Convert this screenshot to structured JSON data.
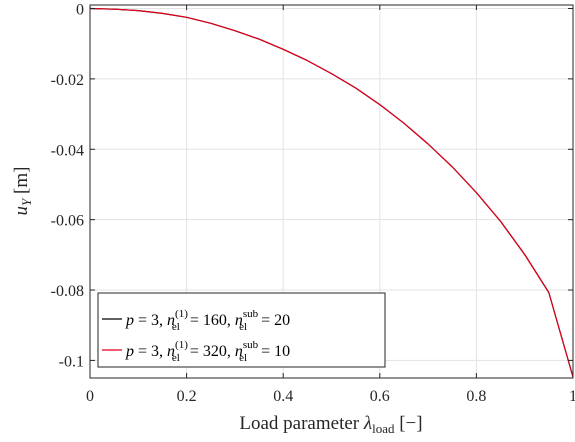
{
  "chart_data": {
    "type": "line",
    "xlabel": {
      "prefix": "Load parameter ",
      "symbol": "λ",
      "subscript": "load",
      "unit": " [−]"
    },
    "ylabel": {
      "symbol": "u",
      "subscript": "Y",
      "unit": " [m]"
    },
    "xlim": [
      0,
      1
    ],
    "ylim": [
      -0.105,
      0.001
    ],
    "grid": true,
    "legend_position": "bottom-left",
    "x_ticks": [
      {
        "value": 0,
        "label": "0"
      },
      {
        "value": 0.2,
        "label": "0.2"
      },
      {
        "value": 0.4,
        "label": "0.4"
      },
      {
        "value": 0.6,
        "label": "0.6"
      },
      {
        "value": 0.8,
        "label": "0.8"
      },
      {
        "value": 1,
        "label": "1"
      }
    ],
    "y_ticks": [
      {
        "value": 0,
        "label": "0"
      },
      {
        "value": -0.02,
        "label": "-0.02"
      },
      {
        "value": -0.04,
        "label": "-0.04"
      },
      {
        "value": -0.06,
        "label": "-0.06"
      },
      {
        "value": -0.08,
        "label": "-0.08"
      },
      {
        "value": -0.1,
        "label": "-0.1"
      }
    ],
    "series": [
      {
        "name": "p = 3, n_el^(1) = 160, n_el^sub = 20",
        "legend": {
          "p": "3",
          "n1": "160",
          "nsub": "20"
        },
        "color": "#000000",
        "x": [
          0,
          0.05,
          0.1,
          0.15,
          0.2,
          0.25,
          0.3,
          0.35,
          0.4,
          0.45,
          0.5,
          0.55,
          0.6,
          0.65,
          0.7,
          0.75,
          0.8,
          0.85,
          0.9,
          0.95,
          1.0
        ],
        "y": [
          0,
          -0.0002,
          -0.0006,
          -0.0014,
          -0.0025,
          -0.0042,
          -0.0063,
          -0.0087,
          -0.0116,
          -0.0148,
          -0.0185,
          -0.0226,
          -0.0273,
          -0.0326,
          -0.0385,
          -0.045,
          -0.0523,
          -0.0605,
          -0.0699,
          -0.0807,
          -0.1047
        ]
      },
      {
        "name": "p = 3, n_el^(1) = 320, n_el^sub = 10",
        "legend": {
          "p": "3",
          "n1": "320",
          "nsub": "10"
        },
        "color": "#e4001b",
        "x": [
          0,
          0.05,
          0.1,
          0.15,
          0.2,
          0.25,
          0.3,
          0.35,
          0.4,
          0.45,
          0.5,
          0.55,
          0.6,
          0.65,
          0.7,
          0.75,
          0.8,
          0.85,
          0.9,
          0.95,
          1.0
        ],
        "y": [
          0,
          -0.0002,
          -0.0006,
          -0.0014,
          -0.0025,
          -0.0042,
          -0.0063,
          -0.0087,
          -0.0116,
          -0.0148,
          -0.0185,
          -0.0226,
          -0.0273,
          -0.0326,
          -0.0385,
          -0.045,
          -0.0523,
          -0.0605,
          -0.0699,
          -0.0807,
          -0.1047
        ]
      }
    ]
  }
}
